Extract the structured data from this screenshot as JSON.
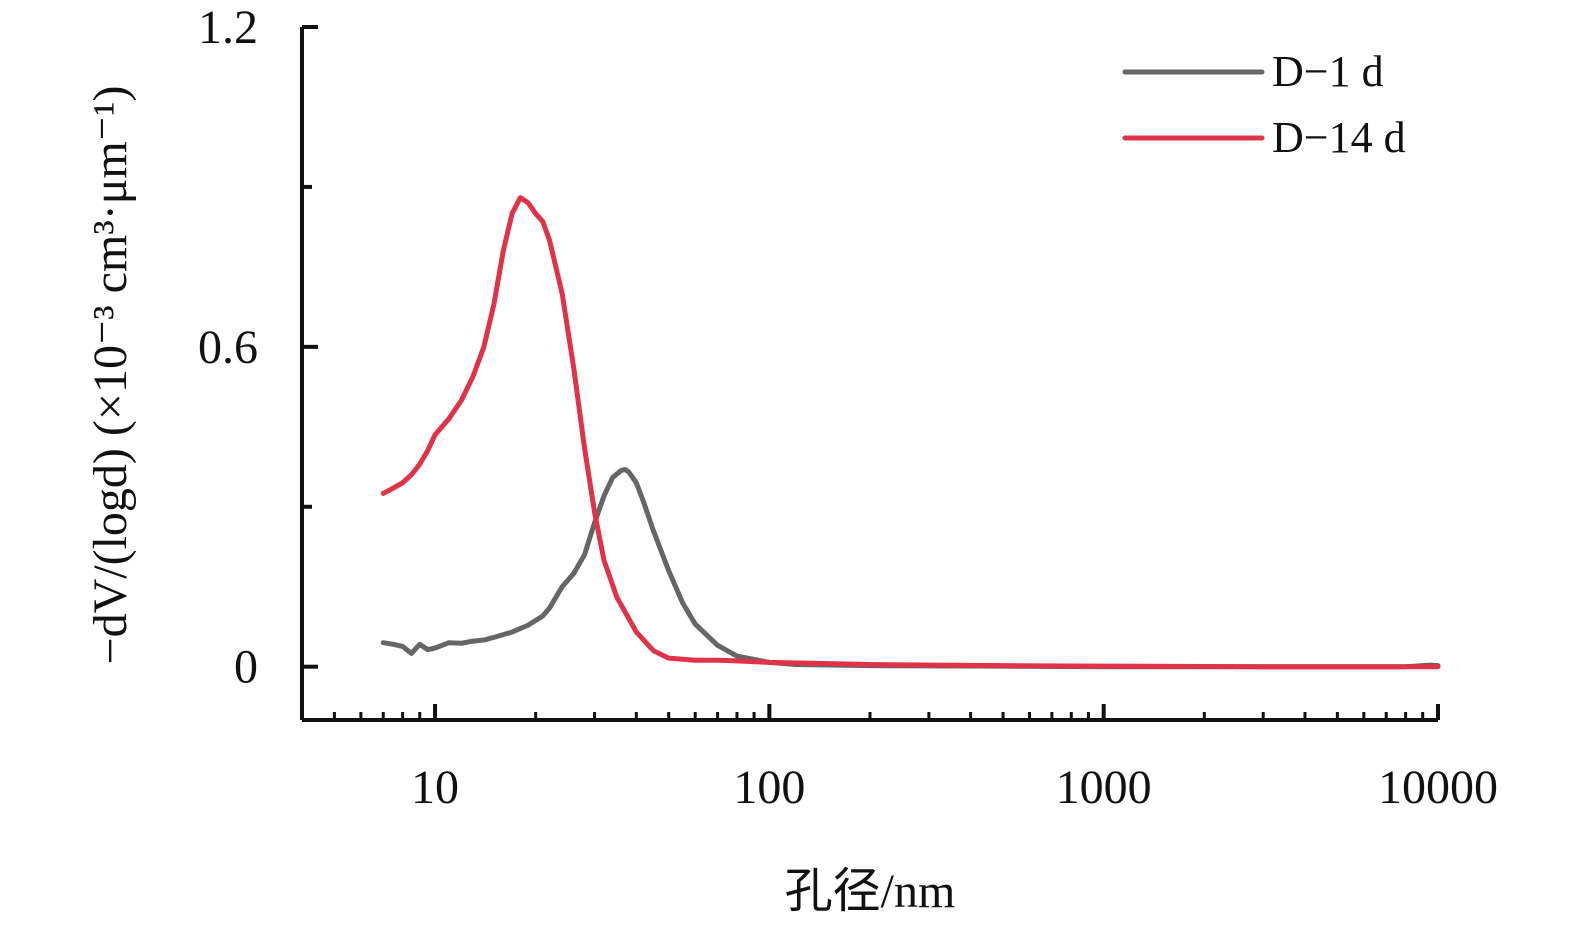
{
  "chart_data": {
    "type": "line",
    "title": "",
    "xlabel": "孔径/nm",
    "ylabel": "−dV/(logd) (×10⁻³ cm³·μm⁻¹)",
    "xscale": "log",
    "xlim": [
      4,
      10000
    ],
    "ylim": [
      -0.1,
      1.2
    ],
    "xticks": [
      10,
      100,
      1000,
      10000
    ],
    "xtick_labels": [
      "10",
      "100",
      "1000",
      "10000"
    ],
    "yticks": [
      0,
      0.6,
      1.2
    ],
    "ytick_labels": [
      "0",
      "0.6",
      "1.2"
    ],
    "grid": false,
    "legend_position": "top-right",
    "series": [
      {
        "name": "D−1 d",
        "color": "#666666",
        "points": [
          [
            7.0,
            0.045
          ],
          [
            7.5,
            0.042
          ],
          [
            8.0,
            0.038
          ],
          [
            8.5,
            0.025
          ],
          [
            9.0,
            0.042
          ],
          [
            9.5,
            0.032
          ],
          [
            10.0,
            0.035
          ],
          [
            11.0,
            0.045
          ],
          [
            12.0,
            0.044
          ],
          [
            13.0,
            0.048
          ],
          [
            14.0,
            0.05
          ],
          [
            15.0,
            0.055
          ],
          [
            17.0,
            0.065
          ],
          [
            19.0,
            0.078
          ],
          [
            21.0,
            0.095
          ],
          [
            22.0,
            0.11
          ],
          [
            24.0,
            0.15
          ],
          [
            26.0,
            0.175
          ],
          [
            28.0,
            0.21
          ],
          [
            30.0,
            0.27
          ],
          [
            32.0,
            0.32
          ],
          [
            34.0,
            0.355
          ],
          [
            36.0,
            0.368
          ],
          [
            37.0,
            0.37
          ],
          [
            38.0,
            0.365
          ],
          [
            40.0,
            0.345
          ],
          [
            42.0,
            0.31
          ],
          [
            45.0,
            0.255
          ],
          [
            50.0,
            0.18
          ],
          [
            55.0,
            0.12
          ],
          [
            60.0,
            0.08
          ],
          [
            70.0,
            0.04
          ],
          [
            80.0,
            0.02
          ],
          [
            100.0,
            0.008
          ],
          [
            120.0,
            0.004
          ],
          [
            200.0,
            0.002
          ],
          [
            500.0,
            0.001
          ],
          [
            1000.0,
            0.0
          ],
          [
            3000.0,
            0.0
          ],
          [
            8000.0,
            0.0
          ],
          [
            9500.0,
            0.003
          ],
          [
            10000.0,
            0.002
          ]
        ]
      },
      {
        "name": "D−14 d",
        "color": "#e0334a",
        "points": [
          [
            7.0,
            0.325
          ],
          [
            7.5,
            0.335
          ],
          [
            8.0,
            0.345
          ],
          [
            8.5,
            0.36
          ],
          [
            9.0,
            0.38
          ],
          [
            9.5,
            0.405
          ],
          [
            10.0,
            0.435
          ],
          [
            11.0,
            0.465
          ],
          [
            12.0,
            0.5
          ],
          [
            13.0,
            0.545
          ],
          [
            14.0,
            0.6
          ],
          [
            15.0,
            0.68
          ],
          [
            16.0,
            0.78
          ],
          [
            17.0,
            0.85
          ],
          [
            18.0,
            0.88
          ],
          [
            19.0,
            0.87
          ],
          [
            20.0,
            0.85
          ],
          [
            21.0,
            0.835
          ],
          [
            22.0,
            0.8
          ],
          [
            24.0,
            0.7
          ],
          [
            26.0,
            0.56
          ],
          [
            28.0,
            0.41
          ],
          [
            30.0,
            0.29
          ],
          [
            32.0,
            0.2
          ],
          [
            35.0,
            0.13
          ],
          [
            40.0,
            0.065
          ],
          [
            45.0,
            0.03
          ],
          [
            50.0,
            0.016
          ],
          [
            60.0,
            0.012
          ],
          [
            70.0,
            0.012
          ],
          [
            80.0,
            0.011
          ],
          [
            100.0,
            0.008
          ],
          [
            200.0,
            0.004
          ],
          [
            500.0,
            0.002
          ],
          [
            1000.0,
            0.001
          ],
          [
            3000.0,
            0.0
          ],
          [
            10000.0,
            0.0
          ]
        ]
      }
    ]
  }
}
